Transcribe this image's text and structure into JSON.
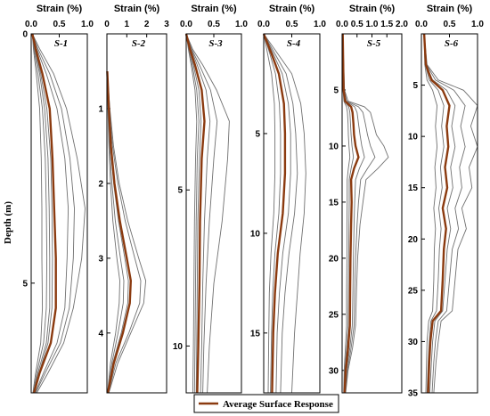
{
  "figure": {
    "y_axis_label": "Depth (m)",
    "x_axis_title": "Strain (%)",
    "legend": {
      "label": "Average Surface Response",
      "placement": "bottom-right"
    }
  },
  "colors": {
    "average": "#8B3A0F",
    "individual": "#707070",
    "frame": "#000000"
  },
  "chart_data": [
    {
      "type": "line",
      "panel": "S-1",
      "xlim": [
        0,
        1
      ],
      "xticks": [
        "0.0",
        "0.5",
        "1.0"
      ],
      "ylim": [
        0,
        7.2
      ],
      "yticks": [
        0,
        5
      ],
      "depth": [
        0,
        0.3,
        0.8,
        1.5,
        2.5,
        3.5,
        4.5,
        5.5,
        6.2,
        6.8,
        7.2
      ],
      "series": [
        {
          "name": "Average Surface Response",
          "values": [
            0.02,
            0.08,
            0.2,
            0.33,
            0.38,
            0.41,
            0.44,
            0.44,
            0.35,
            0.15,
            0.05
          ]
        },
        {
          "values": [
            0.02,
            0.15,
            0.4,
            0.63,
            0.82,
            0.96,
            0.9,
            0.75,
            0.58,
            0.3,
            0.1
          ]
        },
        {
          "values": [
            0.02,
            0.12,
            0.33,
            0.54,
            0.69,
            0.77,
            0.75,
            0.68,
            0.52,
            0.25,
            0.08
          ]
        },
        {
          "values": [
            0.02,
            0.1,
            0.27,
            0.46,
            0.6,
            0.66,
            0.64,
            0.6,
            0.46,
            0.22,
            0.07
          ]
        },
        {
          "values": [
            0.02,
            0.07,
            0.17,
            0.28,
            0.35,
            0.37,
            0.38,
            0.37,
            0.3,
            0.14,
            0.05
          ]
        },
        {
          "values": [
            0.02,
            0.05,
            0.12,
            0.2,
            0.25,
            0.27,
            0.28,
            0.27,
            0.22,
            0.1,
            0.04
          ]
        },
        {
          "values": [
            0.02,
            0.04,
            0.09,
            0.15,
            0.18,
            0.19,
            0.19,
            0.2,
            0.17,
            0.08,
            0.03
          ]
        },
        {
          "values": [
            0.02,
            0.06,
            0.15,
            0.24,
            0.3,
            0.32,
            0.33,
            0.33,
            0.27,
            0.12,
            0.04
          ]
        }
      ]
    },
    {
      "type": "line",
      "panel": "S-2",
      "xlim": [
        0,
        3
      ],
      "xticks": [
        "0",
        "1",
        "2",
        "3"
      ],
      "ylim": [
        0,
        4.8
      ],
      "yticks": [
        1,
        2,
        3,
        4
      ],
      "depth": [
        0.5,
        1,
        1.5,
        2,
        2.5,
        3,
        3.3,
        3.6,
        4,
        4.4,
        4.8
      ],
      "series": [
        {
          "name": "Average Surface Response",
          "values": [
            0.02,
            0.1,
            0.2,
            0.38,
            0.65,
            1.0,
            1.2,
            1.15,
            0.8,
            0.35,
            0.05
          ]
        },
        {
          "values": [
            0.02,
            0.15,
            0.33,
            0.62,
            1.05,
            1.6,
            1.95,
            1.85,
            1.2,
            0.55,
            0.1
          ]
        },
        {
          "values": [
            0.02,
            0.12,
            0.28,
            0.55,
            0.92,
            1.4,
            1.7,
            1.65,
            1.1,
            0.45,
            0.08
          ]
        },
        {
          "values": [
            0.02,
            0.09,
            0.18,
            0.34,
            0.58,
            0.9,
            1.08,
            1.05,
            0.72,
            0.3,
            0.05
          ]
        },
        {
          "values": [
            0.02,
            0.07,
            0.14,
            0.25,
            0.42,
            0.68,
            0.85,
            0.82,
            0.56,
            0.25,
            0.04
          ]
        },
        {
          "values": [
            0.02,
            0.05,
            0.1,
            0.18,
            0.3,
            0.5,
            0.65,
            0.62,
            0.44,
            0.18,
            0.03
          ]
        }
      ]
    },
    {
      "type": "line",
      "panel": "S-3",
      "xlim": [
        0,
        1
      ],
      "xticks": [
        "0.0",
        "0.5",
        "1.0"
      ],
      "ylim": [
        0,
        11.5
      ],
      "yticks": [
        5,
        10
      ],
      "depth": [
        0,
        0.5,
        1,
        1.8,
        2.8,
        4,
        6,
        8,
        10,
        11.5
      ],
      "series": [
        {
          "name": "Average Surface Response",
          "values": [
            0.0,
            0.07,
            0.16,
            0.28,
            0.33,
            0.28,
            0.25,
            0.24,
            0.22,
            0.2
          ]
        },
        {
          "values": [
            0.0,
            0.12,
            0.3,
            0.55,
            0.78,
            0.75,
            0.65,
            0.5,
            0.42,
            0.38
          ]
        },
        {
          "values": [
            0.0,
            0.1,
            0.24,
            0.44,
            0.56,
            0.5,
            0.42,
            0.36,
            0.32,
            0.3
          ]
        },
        {
          "values": [
            0.0,
            0.09,
            0.2,
            0.36,
            0.43,
            0.38,
            0.33,
            0.3,
            0.28,
            0.26
          ]
        },
        {
          "values": [
            0.0,
            0.06,
            0.13,
            0.23,
            0.27,
            0.24,
            0.21,
            0.2,
            0.19,
            0.18
          ]
        },
        {
          "values": [
            0.0,
            0.04,
            0.09,
            0.16,
            0.19,
            0.17,
            0.15,
            0.14,
            0.13,
            0.12
          ]
        },
        {
          "values": [
            0.0,
            0.05,
            0.11,
            0.19,
            0.23,
            0.2,
            0.18,
            0.17,
            0.16,
            0.15
          ]
        }
      ]
    },
    {
      "type": "line",
      "panel": "S-4",
      "xlim": [
        0,
        1
      ],
      "xticks": [
        "0.0",
        "0.5",
        "1.0"
      ],
      "ylim": [
        0,
        18
      ],
      "yticks": [
        5,
        10,
        15
      ],
      "depth": [
        0,
        1,
        2,
        3.5,
        5,
        7,
        9,
        11,
        13,
        15,
        18
      ],
      "series": [
        {
          "name": "Average Surface Response",
          "values": [
            0.0,
            0.14,
            0.27,
            0.36,
            0.38,
            0.38,
            0.34,
            0.25,
            0.2,
            0.17,
            0.15
          ]
        },
        {
          "values": [
            0.0,
            0.25,
            0.5,
            0.66,
            0.72,
            0.75,
            0.72,
            0.65,
            0.6,
            0.55,
            0.5
          ]
        },
        {
          "values": [
            0.0,
            0.2,
            0.4,
            0.52,
            0.57,
            0.6,
            0.55,
            0.45,
            0.38,
            0.33,
            0.3
          ]
        },
        {
          "values": [
            0.0,
            0.17,
            0.33,
            0.44,
            0.48,
            0.48,
            0.44,
            0.34,
            0.28,
            0.24,
            0.22
          ]
        },
        {
          "values": [
            0.0,
            0.11,
            0.21,
            0.28,
            0.3,
            0.3,
            0.27,
            0.2,
            0.16,
            0.14,
            0.12
          ]
        },
        {
          "values": [
            0.0,
            0.07,
            0.14,
            0.19,
            0.2,
            0.2,
            0.18,
            0.13,
            0.1,
            0.09,
            0.08
          ]
        }
      ]
    },
    {
      "type": "line",
      "panel": "S-5",
      "xlim": [
        0,
        2
      ],
      "xticks": [
        "0.0",
        "0.5",
        "1.0",
        "1.5",
        "2.0"
      ],
      "ylim": [
        0,
        32
      ],
      "yticks": [
        5,
        10,
        15,
        20,
        25,
        30
      ],
      "depth": [
        0,
        5,
        6,
        6.5,
        7,
        8,
        9,
        10,
        11,
        12,
        13,
        15,
        17,
        20,
        23,
        26,
        28,
        30,
        32
      ],
      "series": [
        {
          "name": "Average Surface Response",
          "values": [
            0.02,
            0.05,
            0.1,
            0.3,
            0.35,
            0.38,
            0.4,
            0.45,
            0.55,
            0.4,
            0.3,
            0.32,
            0.3,
            0.28,
            0.27,
            0.26,
            0.2,
            0.12,
            0.08
          ]
        },
        {
          "values": [
            0.02,
            0.08,
            0.2,
            0.75,
            0.95,
            1.05,
            1.15,
            1.4,
            1.55,
            1.2,
            0.8,
            0.7,
            0.6,
            0.52,
            0.48,
            0.45,
            0.35,
            0.2,
            0.12
          ]
        },
        {
          "values": [
            0.02,
            0.07,
            0.15,
            0.55,
            0.7,
            0.78,
            0.85,
            0.95,
            1.1,
            0.85,
            0.62,
            0.55,
            0.5,
            0.45,
            0.42,
            0.4,
            0.3,
            0.18,
            0.1
          ]
        },
        {
          "values": [
            0.02,
            0.06,
            0.13,
            0.42,
            0.5,
            0.55,
            0.6,
            0.66,
            0.75,
            0.58,
            0.45,
            0.42,
            0.4,
            0.38,
            0.36,
            0.34,
            0.26,
            0.15,
            0.09
          ]
        },
        {
          "values": [
            0.02,
            0.04,
            0.08,
            0.22,
            0.26,
            0.28,
            0.3,
            0.33,
            0.38,
            0.3,
            0.24,
            0.24,
            0.23,
            0.22,
            0.21,
            0.2,
            0.15,
            0.09,
            0.06
          ]
        },
        {
          "values": [
            0.02,
            0.03,
            0.06,
            0.15,
            0.18,
            0.2,
            0.21,
            0.23,
            0.26,
            0.21,
            0.17,
            0.17,
            0.16,
            0.16,
            0.15,
            0.15,
            0.11,
            0.07,
            0.05
          ]
        }
      ]
    },
    {
      "type": "line",
      "panel": "S-6",
      "xlim": [
        0,
        1
      ],
      "xticks": [
        "0.0",
        "0.5",
        "1.0"
      ],
      "ylim": [
        0,
        35
      ],
      "yticks": [
        5,
        10,
        15,
        20,
        25,
        30,
        35
      ],
      "depth": [
        0,
        3,
        4.5,
        5.5,
        7,
        9,
        11,
        13,
        15,
        17,
        19,
        21,
        24,
        27,
        28,
        30,
        32,
        35
      ],
      "series": [
        {
          "name": "Average Surface Response",
          "values": [
            0.05,
            0.08,
            0.18,
            0.38,
            0.5,
            0.45,
            0.48,
            0.42,
            0.46,
            0.38,
            0.44,
            0.4,
            0.38,
            0.35,
            0.2,
            0.16,
            0.14,
            0.12
          ]
        },
        {
          "values": [
            0.05,
            0.1,
            0.3,
            0.75,
            1.0,
            0.88,
            1.0,
            0.85,
            0.9,
            0.72,
            0.8,
            0.65,
            0.6,
            0.55,
            0.35,
            0.3,
            0.26,
            0.22
          ]
        },
        {
          "values": [
            0.05,
            0.09,
            0.25,
            0.58,
            0.78,
            0.7,
            0.78,
            0.68,
            0.72,
            0.6,
            0.66,
            0.55,
            0.5,
            0.45,
            0.3,
            0.25,
            0.22,
            0.19
          ]
        },
        {
          "values": [
            0.05,
            0.08,
            0.2,
            0.45,
            0.6,
            0.54,
            0.6,
            0.52,
            0.56,
            0.46,
            0.52,
            0.46,
            0.42,
            0.38,
            0.24,
            0.2,
            0.18,
            0.15
          ]
        },
        {
          "values": [
            0.05,
            0.07,
            0.14,
            0.3,
            0.4,
            0.36,
            0.4,
            0.34,
            0.37,
            0.31,
            0.35,
            0.32,
            0.3,
            0.27,
            0.17,
            0.14,
            0.12,
            0.1
          ]
        },
        {
          "values": [
            0.05,
            0.06,
            0.1,
            0.2,
            0.28,
            0.25,
            0.28,
            0.24,
            0.26,
            0.22,
            0.25,
            0.23,
            0.22,
            0.2,
            0.13,
            0.1,
            0.09,
            0.08
          ]
        }
      ]
    }
  ]
}
